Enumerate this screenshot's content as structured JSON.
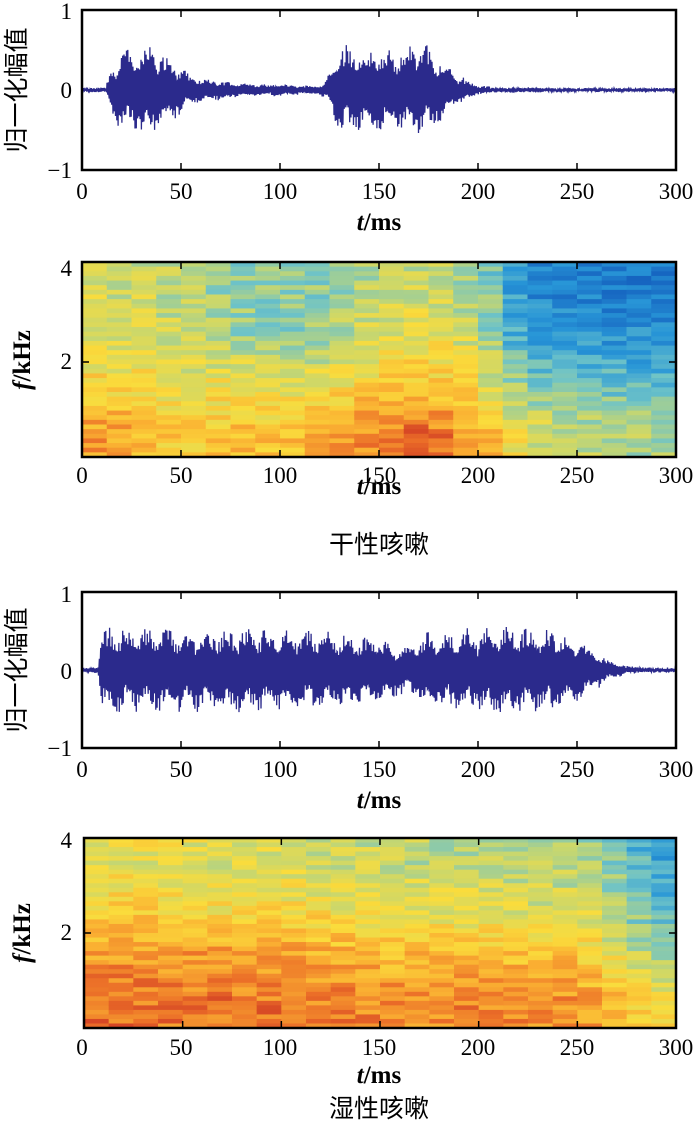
{
  "figure": {
    "dry": {
      "caption": "干性咳嗽",
      "waveform": {
        "ylabel": "归一化幅值",
        "xlabel_var": "t",
        "xlabel_unit": "/ms",
        "xlim": [
          0,
          300
        ],
        "ylim": [
          -1,
          1
        ],
        "xticks": [
          "0",
          "50",
          "100",
          "150",
          "200",
          "250",
          "300"
        ],
        "yticks": [
          "1",
          "0",
          "−1"
        ],
        "color": "#2b2a8c"
      },
      "spectrogram": {
        "ylabel_var": "f",
        "ylabel_unit": "/kHz",
        "xlabel_var": "t",
        "xlabel_unit": "/ms",
        "xlim": [
          0,
          300
        ],
        "ylim": [
          0,
          4
        ],
        "xticks": [
          "0",
          "50",
          "100",
          "150",
          "200",
          "250",
          "300"
        ],
        "yticks": [
          "4",
          "2"
        ]
      }
    },
    "wet": {
      "caption": "湿性咳嗽",
      "waveform": {
        "ylabel": "归一化幅值",
        "xlabel_var": "t",
        "xlabel_unit": "/ms",
        "xlim": [
          0,
          300
        ],
        "ylim": [
          -1,
          1
        ],
        "xticks": [
          "0",
          "50",
          "100",
          "150",
          "200",
          "250",
          "300"
        ],
        "yticks": [
          "1",
          "0",
          "−1"
        ],
        "color": "#2b2a8c"
      },
      "spectrogram": {
        "ylabel_var": "f",
        "ylabel_unit": "/kHz",
        "xlabel_var": "t",
        "xlabel_unit": "/ms",
        "xlim": [
          0,
          300
        ],
        "ylim": [
          0,
          4
        ],
        "xticks": [
          "0",
          "50",
          "100",
          "150",
          "200",
          "250",
          "300"
        ],
        "yticks": [
          "4",
          "2"
        ]
      }
    }
  },
  "chart_data": [
    {
      "type": "line",
      "xlim": [
        0,
        300
      ],
      "ylim": [
        -1,
        1
      ],
      "xlabel": "t/ms",
      "ylabel": "归一化幅值",
      "envelope": {
        "x": [
          0,
          12,
          15,
          20,
          25,
          30,
          35,
          40,
          45,
          50,
          55,
          60,
          70,
          80,
          90,
          100,
          110,
          120,
          125,
          130,
          135,
          140,
          145,
          150,
          155,
          160,
          165,
          170,
          175,
          180,
          185,
          190,
          200,
          210,
          220,
          240,
          260,
          280,
          300
        ],
        "amplitude": [
          0.02,
          0.03,
          0.3,
          0.55,
          0.5,
          0.6,
          0.55,
          0.5,
          0.4,
          0.3,
          0.2,
          0.15,
          0.12,
          0.1,
          0.08,
          0.08,
          0.06,
          0.05,
          0.2,
          0.55,
          0.6,
          0.5,
          0.5,
          0.55,
          0.5,
          0.5,
          0.6,
          0.6,
          0.55,
          0.45,
          0.3,
          0.2,
          0.06,
          0.03,
          0.03,
          0.02,
          0.02,
          0.02,
          0.02
        ]
      }
    },
    {
      "type": "heatmap",
      "xlim": [
        0,
        300
      ],
      "ylim": [
        0,
        4
      ],
      "xlabel": "t/ms",
      "ylabel": "f/kHz",
      "time_bins": [
        0,
        25,
        50,
        75,
        100,
        125,
        150,
        175,
        200,
        225,
        250,
        275,
        300
      ],
      "freq_bins_khz": [
        0.5,
        1.5,
        2.5,
        3.5
      ],
      "relative_intensity": [
        [
          0.8,
          0.75,
          0.65,
          0.7,
          0.68,
          0.75,
          0.85,
          0.88,
          0.75,
          0.55,
          0.5,
          0.48,
          0.45
        ],
        [
          0.65,
          0.62,
          0.58,
          0.6,
          0.55,
          0.58,
          0.65,
          0.68,
          0.6,
          0.4,
          0.35,
          0.33,
          0.32
        ],
        [
          0.55,
          0.55,
          0.5,
          0.45,
          0.4,
          0.45,
          0.55,
          0.58,
          0.5,
          0.2,
          0.18,
          0.18,
          0.18
        ],
        [
          0.55,
          0.52,
          0.48,
          0.42,
          0.4,
          0.42,
          0.5,
          0.52,
          0.45,
          0.15,
          0.12,
          0.1,
          0.1
        ]
      ]
    },
    {
      "type": "line",
      "xlim": [
        0,
        300
      ],
      "ylim": [
        -1,
        1
      ],
      "xlabel": "t/ms",
      "ylabel": "归一化幅值",
      "envelope": {
        "x": [
          0,
          8,
          10,
          15,
          25,
          50,
          75,
          100,
          125,
          150,
          165,
          175,
          185,
          200,
          210,
          225,
          240,
          255,
          265,
          275,
          285,
          300
        ],
        "amplitude": [
          0.03,
          0.04,
          0.5,
          0.6,
          0.55,
          0.55,
          0.55,
          0.55,
          0.5,
          0.45,
          0.3,
          0.5,
          0.55,
          0.55,
          0.58,
          0.55,
          0.55,
          0.35,
          0.15,
          0.05,
          0.03,
          0.03
        ]
      }
    },
    {
      "type": "heatmap",
      "xlim": [
        0,
        300
      ],
      "ylim": [
        0,
        4
      ],
      "xlabel": "t/ms",
      "ylabel": "f/kHz",
      "time_bins": [
        0,
        25,
        50,
        75,
        100,
        125,
        150,
        175,
        200,
        225,
        250,
        275,
        300
      ],
      "freq_bins_khz": [
        0.5,
        1.5,
        2.5,
        3.5
      ],
      "relative_intensity": [
        [
          0.88,
          0.88,
          0.85,
          0.88,
          0.85,
          0.85,
          0.82,
          0.82,
          0.85,
          0.82,
          0.82,
          0.7,
          0.6
        ],
        [
          0.78,
          0.8,
          0.8,
          0.78,
          0.78,
          0.75,
          0.72,
          0.72,
          0.7,
          0.7,
          0.68,
          0.55,
          0.4
        ],
        [
          0.65,
          0.66,
          0.64,
          0.62,
          0.62,
          0.6,
          0.58,
          0.58,
          0.56,
          0.55,
          0.55,
          0.42,
          0.25
        ],
        [
          0.58,
          0.58,
          0.56,
          0.55,
          0.55,
          0.52,
          0.5,
          0.48,
          0.48,
          0.48,
          0.46,
          0.35,
          0.18
        ]
      ]
    }
  ]
}
